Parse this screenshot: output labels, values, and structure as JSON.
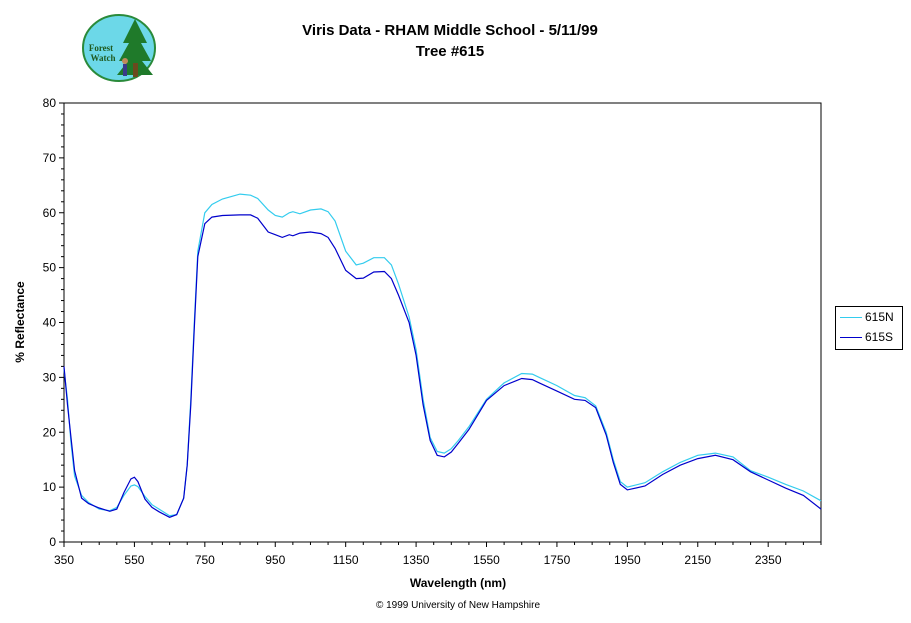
{
  "header": {
    "title_line1": "Viris Data - RHAM Middle School - 5/11/99",
    "title_line2": "Tree #615",
    "logo_text": "Forest Watch"
  },
  "footer": {
    "copyright": "© 1999 University of New Hampshire"
  },
  "chart_data": {
    "type": "line",
    "title": "Viris Data - RHAM Middle School - 5/11/99",
    "subtitle": "Tree #615",
    "xlabel": "Wavelength (nm)",
    "ylabel": "% Reflectance",
    "xlim": [
      350,
      2500
    ],
    "ylim": [
      0,
      80
    ],
    "xticks": [
      350,
      550,
      750,
      950,
      1150,
      1350,
      1550,
      1750,
      1950,
      2150,
      2350
    ],
    "yticks": [
      0,
      10,
      20,
      30,
      40,
      50,
      60,
      70,
      80
    ],
    "grid": false,
    "legend_position": "right",
    "series": [
      {
        "name": "615N",
        "color": "#33ccee",
        "x": [
          350,
          360,
          370,
          380,
          400,
          420,
          450,
          480,
          500,
          520,
          540,
          550,
          560,
          580,
          600,
          620,
          650,
          670,
          690,
          700,
          710,
          720,
          730,
          750,
          770,
          800,
          850,
          880,
          900,
          930,
          950,
          970,
          990,
          1000,
          1020,
          1050,
          1080,
          1100,
          1120,
          1150,
          1180,
          1200,
          1230,
          1260,
          1280,
          1300,
          1330,
          1350,
          1370,
          1390,
          1410,
          1430,
          1450,
          1470,
          1500,
          1550,
          1600,
          1650,
          1680,
          1700,
          1750,
          1800,
          1830,
          1860,
          1890,
          1910,
          1930,
          1950,
          2000,
          2050,
          2100,
          2150,
          2200,
          2250,
          2300,
          2350,
          2400,
          2450,
          2500
        ],
        "y": [
          31.5,
          26,
          18,
          12,
          8.5,
          7.2,
          6,
          5.7,
          6.3,
          8.5,
          10.2,
          10.4,
          10.1,
          8.3,
          6.8,
          6,
          4.8,
          5,
          8,
          14,
          26,
          40,
          53,
          60,
          61.5,
          62.5,
          63.4,
          63.2,
          62.6,
          60.5,
          59.5,
          59.2,
          60,
          60.2,
          59.8,
          60.5,
          60.7,
          60.2,
          58.5,
          53,
          50.5,
          50.8,
          51.8,
          51.8,
          50.5,
          47,
          41,
          35,
          26,
          19,
          16.5,
          16.2,
          17,
          18.5,
          21,
          26,
          29,
          30.7,
          30.6,
          30,
          28.5,
          26.7,
          26.3,
          24.8,
          20,
          15,
          11,
          10,
          10.8,
          12.8,
          14.5,
          15.8,
          16.2,
          15.5,
          13,
          11.8,
          10.5,
          9.3,
          7.5
        ]
      },
      {
        "name": "615S",
        "color": "#0000cc",
        "x": [
          350,
          360,
          370,
          380,
          400,
          420,
          450,
          480,
          500,
          520,
          540,
          550,
          560,
          580,
          600,
          620,
          650,
          670,
          690,
          700,
          710,
          720,
          730,
          750,
          770,
          800,
          850,
          880,
          900,
          930,
          950,
          970,
          990,
          1000,
          1020,
          1050,
          1080,
          1100,
          1120,
          1150,
          1180,
          1200,
          1230,
          1260,
          1280,
          1300,
          1330,
          1350,
          1370,
          1390,
          1410,
          1430,
          1450,
          1470,
          1500,
          1550,
          1600,
          1650,
          1680,
          1700,
          1750,
          1800,
          1830,
          1860,
          1890,
          1910,
          1930,
          1950,
          2000,
          2050,
          2100,
          2150,
          2200,
          2250,
          2300,
          2350,
          2400,
          2450,
          2500
        ],
        "y": [
          32,
          25,
          19,
          13,
          8,
          7,
          6.2,
          5.6,
          6,
          9,
          11.5,
          11.8,
          11,
          7.8,
          6.3,
          5.5,
          4.5,
          5,
          8,
          14,
          25,
          39,
          52,
          58,
          59.2,
          59.5,
          59.6,
          59.6,
          59,
          56.5,
          56,
          55.5,
          56,
          55.8,
          56.3,
          56.5,
          56.2,
          55.5,
          53.5,
          49.5,
          48,
          48.1,
          49.2,
          49.3,
          48,
          45,
          40,
          34,
          25,
          18.5,
          15.8,
          15.5,
          16.4,
          18,
          20.5,
          25.8,
          28.5,
          29.8,
          29.6,
          29,
          27.5,
          26,
          25.8,
          24.5,
          19.5,
          14.5,
          10.5,
          9.5,
          10.2,
          12.3,
          14,
          15.2,
          15.8,
          15,
          12.8,
          11.3,
          9.8,
          8.5,
          6
        ]
      }
    ]
  }
}
